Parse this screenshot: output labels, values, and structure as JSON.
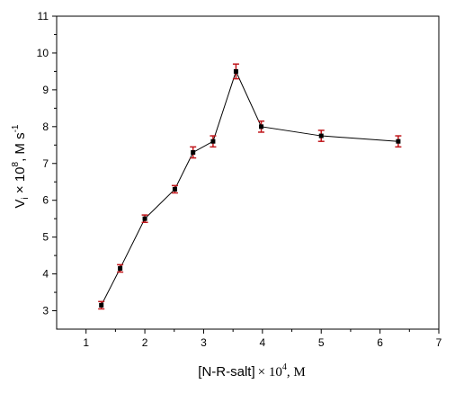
{
  "chart_data": {
    "type": "line",
    "xlabel_main": "[N-R-salt]",
    "xlabel_mult": "× 10",
    "xlabel_exp": "4",
    "xlabel_unit": ", M",
    "ylabel_main": "V",
    "ylabel_sub": "i",
    "ylabel_mult": " × 10",
    "ylabel_exp": "8",
    "ylabel_unit": ", M s",
    "ylabel_unit_exp": "-1",
    "xlim": [
      0.5,
      7
    ],
    "ylim": [
      2.5,
      11
    ],
    "xticks": [
      1,
      2,
      3,
      4,
      5,
      6,
      7
    ],
    "yticks": [
      3,
      4,
      5,
      6,
      7,
      8,
      9,
      10,
      11
    ],
    "grid": false,
    "line_color": "#000000",
    "marker_color": "#000000",
    "errorbar_color": "#c0161b",
    "series": [
      {
        "x": [
          1.26,
          1.58,
          2.0,
          2.51,
          2.82,
          3.16,
          3.55,
          3.98,
          5.0,
          6.31
        ],
        "y": [
          3.15,
          4.15,
          5.5,
          6.3,
          7.3,
          7.6,
          9.5,
          8.0,
          7.75,
          7.6
        ],
        "err": [
          0.1,
          0.1,
          0.1,
          0.1,
          0.15,
          0.15,
          0.2,
          0.15,
          0.15,
          0.15
        ]
      }
    ]
  }
}
